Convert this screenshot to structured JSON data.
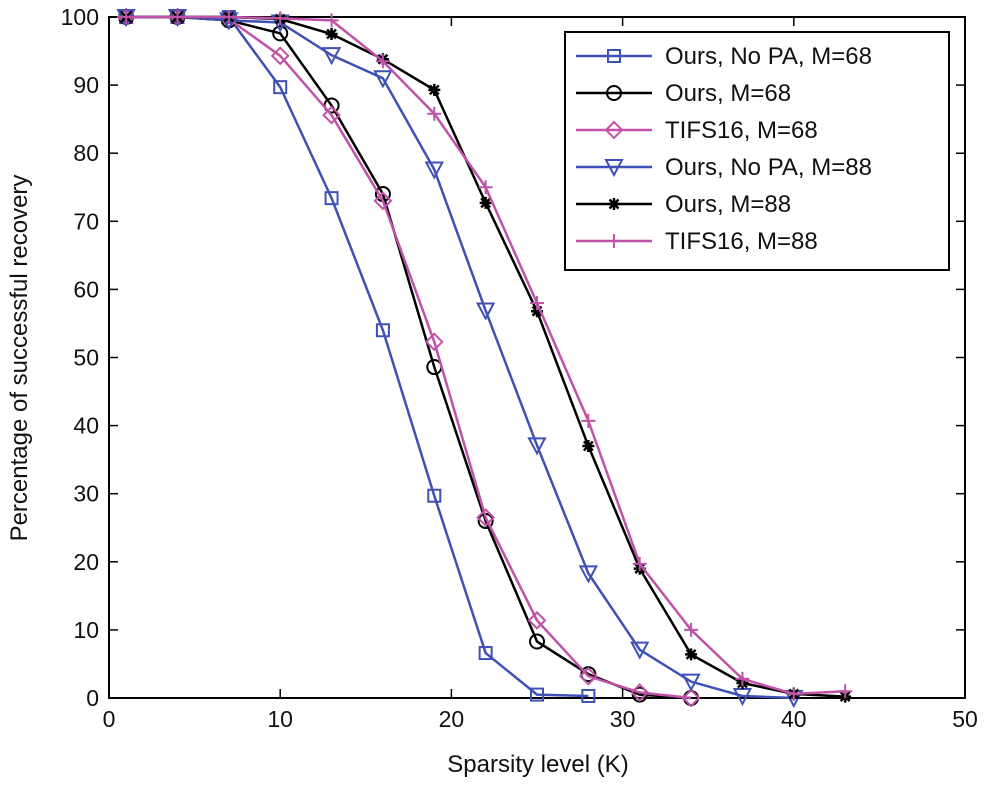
{
  "chart_data": {
    "type": "line",
    "title": "",
    "xlabel": "Sparsity level (K)",
    "ylabel": "Percentage of successful recovery",
    "xlim": [
      0,
      50
    ],
    "ylim": [
      0,
      100
    ],
    "xticks": [
      0,
      10,
      20,
      30,
      40,
      50
    ],
    "yticks": [
      0,
      10,
      20,
      30,
      40,
      50,
      60,
      70,
      80,
      90,
      100
    ],
    "grid": false,
    "legend_position": "top-right",
    "series": [
      {
        "name": "Ours, No PA, M=68",
        "color": "#3f51b5",
        "marker": "square",
        "x": [
          1,
          4,
          7,
          10,
          13,
          16,
          19,
          22,
          25,
          28
        ],
        "y": [
          100,
          100,
          100,
          89.7,
          73.4,
          54,
          29.7,
          6.6,
          0.5,
          0.3
        ]
      },
      {
        "name": "Ours, M=68",
        "color": "#000000",
        "marker": "circle",
        "x": [
          1,
          4,
          7,
          10,
          13,
          16,
          19,
          22,
          25,
          28,
          31,
          34
        ],
        "y": [
          100,
          100,
          99.5,
          97.6,
          87,
          74,
          48.6,
          26,
          8.3,
          3.5,
          0.5,
          0
        ]
      },
      {
        "name": "TIFS16, M=68",
        "color": "#c052a8",
        "marker": "diamond",
        "x": [
          1,
          4,
          7,
          10,
          13,
          16,
          19,
          22,
          25,
          28,
          31,
          34
        ],
        "y": [
          100,
          100,
          99.7,
          94.3,
          85.6,
          73,
          52.3,
          26.5,
          11.4,
          3.2,
          0.8,
          0
        ]
      },
      {
        "name": "Ours, No PA, M=88",
        "color": "#3f51b5",
        "marker": "triangle-down",
        "x": [
          1,
          4,
          7,
          10,
          13,
          16,
          19,
          22,
          25,
          28,
          31,
          34,
          37,
          40
        ],
        "y": [
          100,
          100,
          99.5,
          99.2,
          94.4,
          91,
          77.6,
          56.9,
          37.1,
          18.3,
          7.1,
          2.4,
          0.3,
          0
        ]
      },
      {
        "name": "Ours, M=88",
        "color": "#000000",
        "marker": "asterisk",
        "x": [
          1,
          4,
          7,
          10,
          13,
          16,
          19,
          22,
          25,
          28,
          31,
          34,
          37,
          40,
          43
        ],
        "y": [
          100,
          100,
          100,
          99.7,
          97.5,
          93.8,
          89.3,
          72.7,
          56.8,
          37,
          19,
          6.4,
          2.2,
          0.6,
          0.2
        ]
      },
      {
        "name": "TIFS16, M=88",
        "color": "#c052a8",
        "marker": "plus",
        "x": [
          1,
          4,
          7,
          10,
          13,
          16,
          19,
          22,
          25,
          28,
          31,
          34,
          37,
          40,
          43
        ],
        "y": [
          100,
          100,
          100,
          99.8,
          99.5,
          93.5,
          85.8,
          75,
          58,
          40.7,
          19.7,
          10,
          2.8,
          0.6,
          1
        ]
      }
    ]
  }
}
